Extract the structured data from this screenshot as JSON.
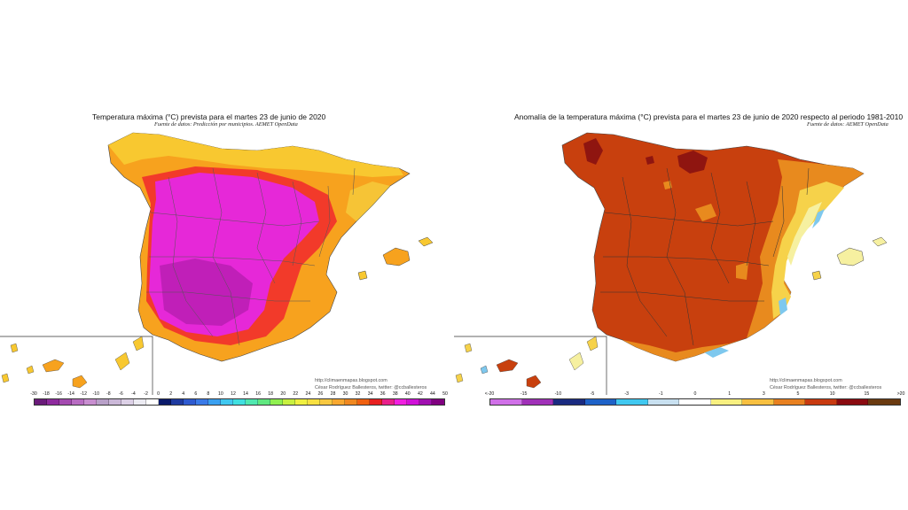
{
  "left_map": {
    "title": "Temperatura máxima (°C) prevista para el martes 23 de junio de 2020",
    "subtitle": "Fuente de datos: Predicción por municipios. AEMET OpenData",
    "credit_url": "http://climaenmapas.blogspot.com",
    "credit_author": "César Rodríguez Ballesteros, twitter: @ccballesteros",
    "legend": {
      "labels": [
        "-30",
        "-18",
        "-16",
        "-14",
        "-12",
        "-10",
        "-8",
        "-6",
        "-4",
        "-2",
        "0",
        "2",
        "4",
        "6",
        "8",
        "10",
        "12",
        "14",
        "16",
        "18",
        "20",
        "22",
        "24",
        "26",
        "28",
        "30",
        "32",
        "34",
        "36",
        "38",
        "40",
        "42",
        "44",
        "50"
      ],
      "colors": [
        "#6a1b7a",
        "#8e2a9e",
        "#a44ab0",
        "#b86cc2",
        "#c88ed0",
        "#b8a0c8",
        "#cbb8d8",
        "#dcd0e6",
        "#ecebf2",
        "#ffffff",
        "#0a1a6a",
        "#1e3aa0",
        "#2e5ad0",
        "#3a7ae8",
        "#3aa0f0",
        "#40c8f0",
        "#40e0e0",
        "#50e8b0",
        "#60e880",
        "#90f050",
        "#c8f040",
        "#f0f040",
        "#f8e040",
        "#f8c840",
        "#f8a830",
        "#f08820",
        "#f06010",
        "#e82020",
        "#e8208a",
        "#f020e0",
        "#d010d8",
        "#a010b0",
        "#800080"
      ]
    },
    "main_colors": {
      "hot": "#e628d8",
      "very_hot": "#c01fb8",
      "warm": "#f23a2a",
      "mild": "#f7a21e",
      "cooler": "#f8c830",
      "cool": "#f6e04a"
    }
  },
  "right_map": {
    "title": "Anomalía de la temperatura máxima (°C) prevista para el martes 23 de junio de 2020 respecto al periodo 1981-2010",
    "subtitle": "Fuente de datos: AEMET OpenData",
    "credit_url": "http://climaenmapas.blogspot.com",
    "credit_author": "César Rodríguez Ballesteros, twitter: @ccballesteros",
    "legend": {
      "labels": [
        "<-20",
        "-15",
        "-10",
        "-5",
        "-3",
        "-1",
        "0",
        "1",
        "3",
        "5",
        "10",
        "15",
        ">20"
      ],
      "colors": [
        "#d070e8",
        "#a030b8",
        "#1a2a80",
        "#1e62c8",
        "#40c8f0",
        "#c8e0f0",
        "#ffffff",
        "#f8f080",
        "#f8c040",
        "#e88020",
        "#c83a10",
        "#8a0a10",
        "#6a3a10"
      ]
    },
    "main_colors": {
      "anomaly_high": "#c8400e",
      "anomaly_very_high": "#8f1510",
      "anomaly_mid": "#e88a1e",
      "anomaly_low": "#f6d24a",
      "anomaly_zero": "#f6f0a0",
      "anomaly_neg": "#7ec8ee"
    }
  }
}
